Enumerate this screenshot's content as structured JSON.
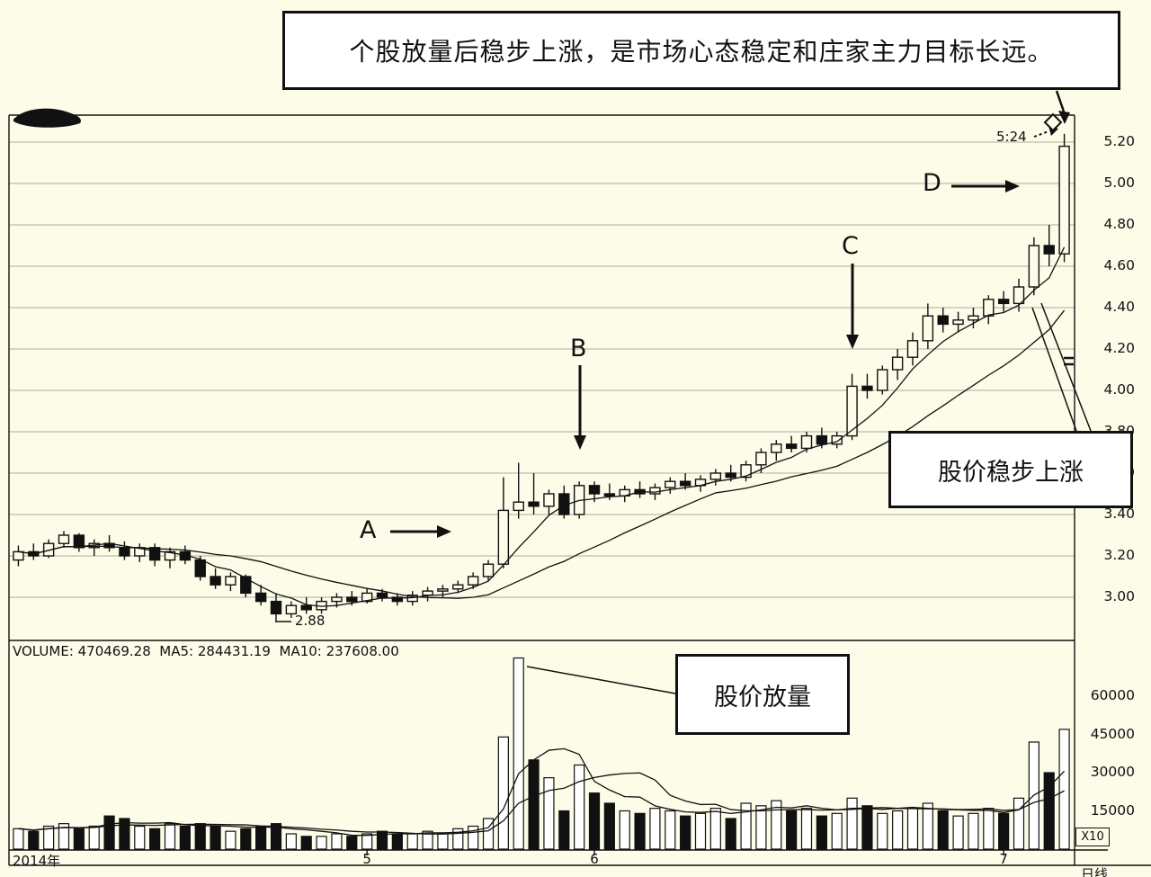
{
  "annotation": {
    "text": "个股放量后稳步上涨，是市场心态稳定和庄家主力目标长远。"
  },
  "callouts": {
    "steady_rise": "股价稳步上涨",
    "volume_surge": "股价放量"
  },
  "markers": {
    "a": "A",
    "b": "B",
    "c": "C",
    "d": "D"
  },
  "labels": {
    "high_marker": "5:24",
    "low_marker": "2.88"
  },
  "volume_header": "VOLUME: 470469.28  MA5: 284431.19  MA10: 237608.00",
  "x_axis": {
    "year": "2014年",
    "period": "日线",
    "scale": "X10"
  },
  "chart_data": {
    "type": "candlestick+volume",
    "title": "",
    "price_axis": {
      "ticks": [
        "5.20",
        "5.00",
        "4.80",
        "4.60",
        "4.40",
        "4.20",
        "4.00",
        "3.80",
        "3.60",
        "3.40",
        "3.20",
        "3.00"
      ],
      "range": [
        2.79,
        5.33
      ]
    },
    "volume_axis": {
      "ticks": [
        "60000",
        "45000",
        "30000",
        "15000"
      ],
      "range": [
        0,
        78000
      ]
    },
    "month_ticks": [
      {
        "label": "5",
        "index": 23
      },
      {
        "label": "6",
        "index": 38
      },
      {
        "label": "7",
        "index": 65
      }
    ],
    "ma_windows": {
      "price": [
        5,
        15
      ],
      "volume": [
        5,
        10
      ]
    },
    "candles": [
      [
        3.18,
        3.25,
        3.15,
        3.22,
        8000
      ],
      [
        3.22,
        3.26,
        3.18,
        3.2,
        7000
      ],
      [
        3.2,
        3.28,
        3.19,
        3.26,
        9000
      ],
      [
        3.26,
        3.32,
        3.24,
        3.3,
        10000
      ],
      [
        3.3,
        3.31,
        3.22,
        3.24,
        8000
      ],
      [
        3.24,
        3.28,
        3.2,
        3.26,
        9000
      ],
      [
        3.26,
        3.3,
        3.22,
        3.24,
        13000
      ],
      [
        3.24,
        3.27,
        3.18,
        3.2,
        12000
      ],
      [
        3.2,
        3.26,
        3.17,
        3.24,
        9000
      ],
      [
        3.24,
        3.26,
        3.15,
        3.18,
        8000
      ],
      [
        3.18,
        3.24,
        3.14,
        3.22,
        10000
      ],
      [
        3.22,
        3.25,
        3.16,
        3.18,
        9000
      ],
      [
        3.18,
        3.2,
        3.08,
        3.1,
        10000
      ],
      [
        3.1,
        3.14,
        3.04,
        3.06,
        9000
      ],
      [
        3.06,
        3.12,
        3.03,
        3.1,
        7000
      ],
      [
        3.1,
        3.11,
        3.0,
        3.02,
        8000
      ],
      [
        3.02,
        3.06,
        2.96,
        2.98,
        9000
      ],
      [
        2.98,
        3.02,
        2.88,
        2.92,
        10000
      ],
      [
        2.92,
        2.98,
        2.9,
        2.96,
        6000
      ],
      [
        2.96,
        3.0,
        2.92,
        2.94,
        5000
      ],
      [
        2.94,
        3.0,
        2.92,
        2.98,
        5000
      ],
      [
        2.98,
        3.02,
        2.95,
        3.0,
        6000
      ],
      [
        3.0,
        3.03,
        2.96,
        2.98,
        5000
      ],
      [
        2.98,
        3.04,
        2.97,
        3.02,
        6000
      ],
      [
        3.02,
        3.04,
        2.98,
        3.0,
        7000
      ],
      [
        3.0,
        3.02,
        2.96,
        2.98,
        6000
      ],
      [
        2.98,
        3.03,
        2.96,
        3.01,
        6000
      ],
      [
        3.01,
        3.05,
        2.98,
        3.03,
        7000
      ],
      [
        3.03,
        3.06,
        3.0,
        3.04,
        6000
      ],
      [
        3.04,
        3.08,
        3.02,
        3.06,
        8000
      ],
      [
        3.06,
        3.12,
        3.04,
        3.1,
        9000
      ],
      [
        3.1,
        3.18,
        3.08,
        3.16,
        12000
      ],
      [
        3.16,
        3.58,
        3.14,
        3.42,
        44000
      ],
      [
        3.42,
        3.65,
        3.38,
        3.46,
        75000
      ],
      [
        3.46,
        3.6,
        3.4,
        3.44,
        35000
      ],
      [
        3.44,
        3.52,
        3.4,
        3.5,
        28000
      ],
      [
        3.5,
        3.54,
        3.38,
        3.4,
        15000
      ],
      [
        3.4,
        3.56,
        3.38,
        3.54,
        33000
      ],
      [
        3.54,
        3.56,
        3.46,
        3.5,
        22000
      ],
      [
        3.5,
        3.55,
        3.47,
        3.49,
        18000
      ],
      [
        3.49,
        3.54,
        3.46,
        3.52,
        15000
      ],
      [
        3.52,
        3.56,
        3.48,
        3.5,
        14000
      ],
      [
        3.5,
        3.55,
        3.47,
        3.53,
        16000
      ],
      [
        3.53,
        3.58,
        3.5,
        3.56,
        15000
      ],
      [
        3.56,
        3.6,
        3.52,
        3.54,
        13000
      ],
      [
        3.54,
        3.59,
        3.51,
        3.57,
        14000
      ],
      [
        3.57,
        3.62,
        3.54,
        3.6,
        16000
      ],
      [
        3.6,
        3.64,
        3.56,
        3.58,
        12000
      ],
      [
        3.58,
        3.66,
        3.56,
        3.64,
        18000
      ],
      [
        3.64,
        3.72,
        3.6,
        3.7,
        17000
      ],
      [
        3.7,
        3.76,
        3.66,
        3.74,
        19000
      ],
      [
        3.74,
        3.78,
        3.7,
        3.72,
        15000
      ],
      [
        3.72,
        3.8,
        3.7,
        3.78,
        16000
      ],
      [
        3.78,
        3.82,
        3.72,
        3.74,
        13000
      ],
      [
        3.74,
        3.8,
        3.72,
        3.78,
        14000
      ],
      [
        3.78,
        4.08,
        3.76,
        4.02,
        20000
      ],
      [
        4.02,
        4.08,
        3.96,
        4.0,
        17000
      ],
      [
        4.0,
        4.12,
        3.98,
        4.1,
        14000
      ],
      [
        4.1,
        4.2,
        4.05,
        4.16,
        15000
      ],
      [
        4.16,
        4.28,
        4.12,
        4.24,
        16000
      ],
      [
        4.24,
        4.42,
        4.2,
        4.36,
        18000
      ],
      [
        4.36,
        4.4,
        4.28,
        4.32,
        15000
      ],
      [
        4.32,
        4.38,
        4.28,
        4.34,
        13000
      ],
      [
        4.34,
        4.4,
        4.3,
        4.36,
        14000
      ],
      [
        4.36,
        4.46,
        4.32,
        4.44,
        16000
      ],
      [
        4.44,
        4.48,
        4.38,
        4.42,
        14000
      ],
      [
        4.42,
        4.54,
        4.38,
        4.5,
        20000
      ],
      [
        4.5,
        4.74,
        4.46,
        4.7,
        42000
      ],
      [
        4.7,
        4.8,
        4.6,
        4.66,
        30000
      ],
      [
        4.66,
        5.24,
        4.62,
        5.18,
        47000
      ]
    ]
  }
}
